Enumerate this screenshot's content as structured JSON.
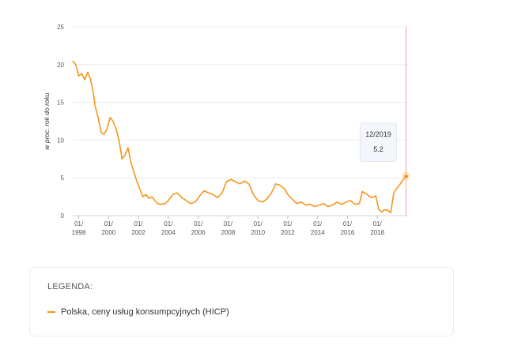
{
  "chart_data": {
    "type": "line",
    "ylabel": "w proc. rok do roku",
    "xlabel": "",
    "ylim": [
      0,
      25
    ],
    "xlim": [
      1997.6,
      2020.0
    ],
    "y_ticks": [
      0,
      5,
      10,
      15,
      20,
      25
    ],
    "x_ticks": [
      {
        "year": 1998,
        "label": [
          "01/",
          "1998"
        ]
      },
      {
        "year": 2000,
        "label": [
          "01/",
          "2000"
        ]
      },
      {
        "year": 2002,
        "label": [
          "01/",
          "2002"
        ]
      },
      {
        "year": 2004,
        "label": [
          "01/",
          "2004"
        ]
      },
      {
        "year": 2006,
        "label": [
          "01/",
          "2006"
        ]
      },
      {
        "year": 2008,
        "label": [
          "01/",
          "2008"
        ]
      },
      {
        "year": 2010,
        "label": [
          "01/",
          "2010"
        ]
      },
      {
        "year": 2012,
        "label": [
          "01/",
          "2012"
        ]
      },
      {
        "year": 2014,
        "label": [
          "01/",
          "2014"
        ]
      },
      {
        "year": 2016,
        "label": [
          "01/",
          "2016"
        ]
      },
      {
        "year": 2018,
        "label": [
          "01/",
          "2018"
        ]
      }
    ],
    "grid": true,
    "series": [
      {
        "name": "Polska, ceny usług konsumpcyjnych (HICP)",
        "color": "#f5961e",
        "x": [
          1997.6,
          1997.8,
          1998.0,
          1998.2,
          1998.4,
          1998.6,
          1998.8,
          1999.0,
          1999.1,
          1999.3,
          1999.5,
          1999.7,
          1999.9,
          2000.1,
          2000.3,
          2000.5,
          2000.7,
          2000.9,
          2001.1,
          2001.3,
          2001.5,
          2001.7,
          2001.9,
          2002.1,
          2002.3,
          2002.5,
          2002.7,
          2002.9,
          2003.1,
          2003.3,
          2003.5,
          2003.8,
          2004.0,
          2004.3,
          2004.6,
          2004.9,
          2005.2,
          2005.5,
          2005.8,
          2006.1,
          2006.4,
          2006.7,
          2007.0,
          2007.3,
          2007.6,
          2007.9,
          2008.2,
          2008.5,
          2008.8,
          2009.1,
          2009.4,
          2009.7,
          2010.0,
          2010.3,
          2010.6,
          2010.9,
          2011.2,
          2011.5,
          2011.8,
          2012.0,
          2012.3,
          2012.6,
          2012.9,
          2013.2,
          2013.5,
          2013.8,
          2014.1,
          2014.4,
          2014.7,
          2015.0,
          2015.3,
          2015.6,
          2015.9,
          2016.2,
          2016.5,
          2016.8,
          2017.0,
          2017.3,
          2017.6,
          2017.9,
          2018.1,
          2018.3,
          2018.5,
          2018.7,
          2018.9,
          2019.1,
          2019.3,
          2019.5,
          2019.7,
          2019.92
        ],
        "y": [
          20.5,
          20.0,
          18.5,
          18.8,
          18.0,
          19.0,
          18.0,
          16.0,
          14.5,
          13.0,
          11.0,
          10.8,
          11.5,
          13.0,
          12.5,
          11.5,
          10.0,
          7.5,
          8.0,
          9.0,
          7.0,
          5.8,
          4.5,
          3.5,
          2.5,
          2.8,
          2.3,
          2.5,
          2.0,
          1.6,
          1.5,
          1.6,
          2.0,
          2.8,
          3.0,
          2.4,
          2.0,
          1.6,
          1.8,
          2.6,
          3.3,
          3.0,
          2.8,
          2.4,
          3.0,
          4.5,
          4.8,
          4.5,
          4.2,
          4.6,
          4.2,
          2.8,
          2.0,
          1.8,
          2.2,
          3.0,
          4.2,
          4.0,
          3.5,
          2.8,
          2.2,
          1.6,
          1.8,
          1.4,
          1.5,
          1.2,
          1.4,
          1.6,
          1.2,
          1.4,
          1.8,
          1.5,
          1.8,
          2.0,
          1.5,
          1.6,
          3.2,
          2.8,
          2.4,
          2.6,
          0.8,
          0.5,
          0.8,
          0.7,
          0.4,
          3.0,
          3.6,
          4.1,
          4.7,
          5.2
        ]
      }
    ],
    "highlight": {
      "date": "12/2019",
      "value": "5.2",
      "x": 2019.92,
      "y": 5.2
    },
    "legend": {
      "title": "LEGENDA:",
      "position": "bottom"
    }
  }
}
